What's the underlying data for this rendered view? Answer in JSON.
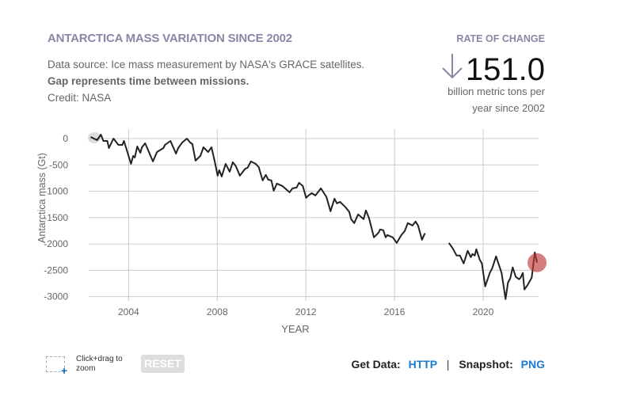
{
  "header": {
    "title": "ANTARCTICA MASS VARIATION SINCE 2002",
    "source": "Data source: Ice mass measurement by NASA's GRACE satellites.",
    "gap_note": "Gap represents time between missions.",
    "credit": "Credit: NASA"
  },
  "rate": {
    "label": "RATE OF CHANGE",
    "direction_icon": "arrow-down-icon",
    "value": "151.0",
    "unit_line1": "billion metric tons per",
    "unit_line2": "year since 2002"
  },
  "controls": {
    "zoom_hint": "Click+drag to zoom",
    "reset": "RESET",
    "get_data_label": "Get Data:",
    "http": "HTTP",
    "separator": "|",
    "snapshot_label": "Snapshot:",
    "png": "PNG"
  },
  "colors": {
    "line": "#222222",
    "marker": "#c0393b",
    "accent": "#8a86a8",
    "link": "#1a7bd0"
  },
  "chart_data": {
    "type": "line",
    "xlabel": "YEAR",
    "ylabel": "Antarctica mass (Gt)",
    "xlim": [
      2002.2,
      2022.5
    ],
    "ylim": [
      -3080,
      180
    ],
    "xticks": [
      2004,
      2008,
      2012,
      2016,
      2020
    ],
    "yticks": [
      0,
      -500,
      -1000,
      -1500,
      -2000,
      -2500,
      -3000
    ],
    "grid": true,
    "highlight_last_point": true,
    "segments": [
      [
        [
          2002.29,
          30
        ],
        [
          2002.58,
          -30
        ],
        [
          2002.75,
          75
        ],
        [
          2002.86,
          -45
        ],
        [
          2003.04,
          -45
        ],
        [
          2003.11,
          -180
        ],
        [
          2003.32,
          0
        ],
        [
          2003.54,
          -120
        ],
        [
          2003.72,
          -120
        ],
        [
          2003.79,
          -45
        ],
        [
          2004.11,
          -480
        ],
        [
          2004.21,
          -330
        ],
        [
          2004.28,
          -360
        ],
        [
          2004.39,
          -150
        ],
        [
          2004.53,
          -270
        ],
        [
          2004.6,
          -165
        ],
        [
          2004.75,
          -90
        ],
        [
          2005.1,
          -435
        ],
        [
          2005.28,
          -255
        ],
        [
          2005.57,
          -180
        ],
        [
          2005.64,
          -120
        ],
        [
          2005.89,
          -45
        ],
        [
          2006.14,
          -285
        ],
        [
          2006.24,
          -180
        ],
        [
          2006.42,
          -75
        ],
        [
          2006.63,
          0
        ],
        [
          2006.78,
          -75
        ],
        [
          2006.88,
          -105
        ],
        [
          2007.02,
          -420
        ],
        [
          2007.24,
          -330
        ],
        [
          2007.38,
          -165
        ],
        [
          2007.59,
          -255
        ],
        [
          2007.74,
          -165
        ],
        [
          2007.88,
          -420
        ],
        [
          2008.02,
          -705
        ],
        [
          2008.09,
          -600
        ],
        [
          2008.2,
          -720
        ],
        [
          2008.38,
          -480
        ],
        [
          2008.56,
          -630
        ],
        [
          2008.7,
          -450
        ],
        [
          2008.84,
          -525
        ],
        [
          2009.02,
          -705
        ],
        [
          2009.27,
          -570
        ],
        [
          2009.37,
          -555
        ],
        [
          2009.52,
          -435
        ],
        [
          2009.73,
          -480
        ],
        [
          2009.87,
          -540
        ],
        [
          2010.05,
          -795
        ],
        [
          2010.19,
          -690
        ],
        [
          2010.3,
          -780
        ],
        [
          2010.44,
          -795
        ],
        [
          2010.55,
          -990
        ],
        [
          2010.69,
          -855
        ],
        [
          2010.94,
          -900
        ],
        [
          2011.26,
          -1020
        ],
        [
          2011.4,
          -945
        ],
        [
          2011.58,
          -930
        ],
        [
          2011.69,
          -840
        ],
        [
          2011.86,
          -900
        ],
        [
          2012.01,
          -1125
        ],
        [
          2012.08,
          -1095
        ],
        [
          2012.26,
          -1035
        ],
        [
          2012.43,
          -1080
        ],
        [
          2012.68,
          -945
        ],
        [
          2012.93,
          -1110
        ],
        [
          2013.11,
          -1380
        ],
        [
          2013.29,
          -1140
        ],
        [
          2013.4,
          -1230
        ],
        [
          2013.54,
          -1200
        ],
        [
          2013.79,
          -1305
        ],
        [
          2013.96,
          -1395
        ],
        [
          2014.04,
          -1530
        ],
        [
          2014.18,
          -1605
        ],
        [
          2014.36,
          -1440
        ],
        [
          2014.6,
          -1530
        ],
        [
          2014.71,
          -1365
        ],
        [
          2014.85,
          -1515
        ],
        [
          2015.07,
          -1875
        ],
        [
          2015.28,
          -1785
        ],
        [
          2015.35,
          -1725
        ],
        [
          2015.49,
          -1740
        ],
        [
          2015.6,
          -1875
        ],
        [
          2015.67,
          -1830
        ],
        [
          2015.92,
          -1875
        ],
        [
          2016.1,
          -1980
        ],
        [
          2016.31,
          -1830
        ],
        [
          2016.46,
          -1755
        ],
        [
          2016.6,
          -1605
        ],
        [
          2016.81,
          -1650
        ],
        [
          2016.95,
          -1575
        ],
        [
          2017.06,
          -1650
        ],
        [
          2017.24,
          -1920
        ],
        [
          2017.35,
          -1815
        ],
        [
          2017.38,
          -1800
        ]
      ],
      [
        [
          2018.45,
          -1980
        ],
        [
          2018.63,
          -2085
        ],
        [
          2018.8,
          -2220
        ],
        [
          2018.95,
          -2220
        ],
        [
          2019.12,
          -2370
        ],
        [
          2019.3,
          -2130
        ],
        [
          2019.44,
          -2250
        ],
        [
          2019.52,
          -2190
        ],
        [
          2019.62,
          -2220
        ],
        [
          2019.69,
          -2100
        ],
        [
          2019.84,
          -2295
        ],
        [
          2019.94,
          -2370
        ],
        [
          2020.09,
          -2805
        ],
        [
          2020.3,
          -2550
        ],
        [
          2020.41,
          -2460
        ],
        [
          2020.58,
          -2235
        ],
        [
          2020.83,
          -2550
        ],
        [
          2021.01,
          -3045
        ],
        [
          2021.12,
          -2730
        ],
        [
          2021.22,
          -2655
        ],
        [
          2021.33,
          -2445
        ],
        [
          2021.47,
          -2625
        ],
        [
          2021.62,
          -2670
        ],
        [
          2021.69,
          -2640
        ],
        [
          2021.79,
          -2550
        ],
        [
          2021.86,
          -2865
        ],
        [
          2022.01,
          -2775
        ],
        [
          2022.19,
          -2640
        ],
        [
          2022.33,
          -2160
        ],
        [
          2022.43,
          -2355
        ]
      ]
    ]
  }
}
